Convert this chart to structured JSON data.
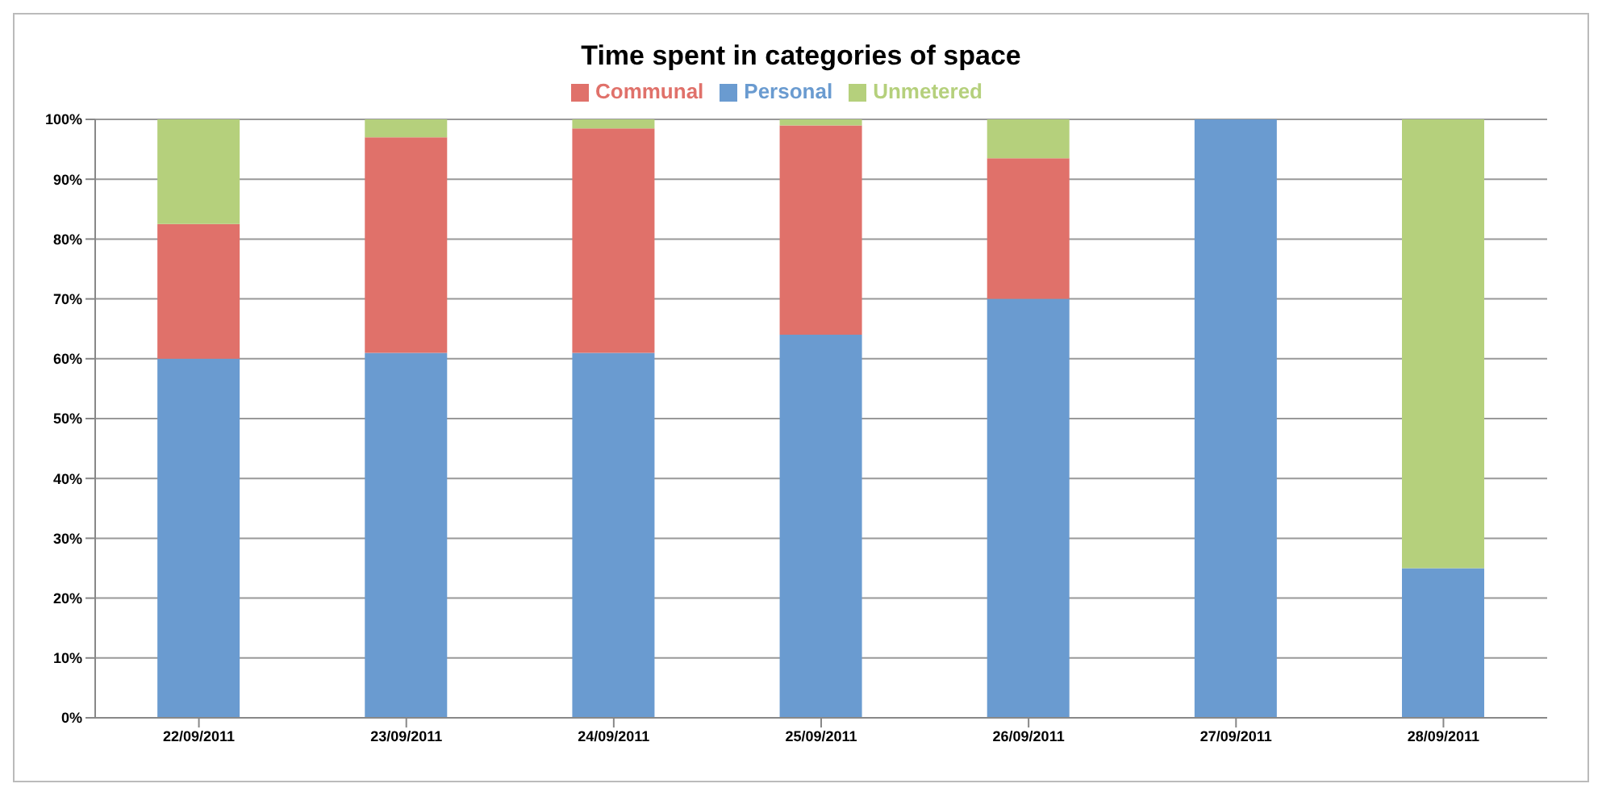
{
  "chart_data": {
    "type": "bar",
    "title": "Time spent in categories of space",
    "stacked": true,
    "grid": "y",
    "legend": "top",
    "categories": [
      "22/09/2011",
      "23/09/2011",
      "24/09/2011",
      "25/09/2011",
      "26/09/2011",
      "27/09/2011",
      "28/09/2011"
    ],
    "series": [
      {
        "name": "Personal",
        "color": "#6a9bd0",
        "values": [
          60,
          61,
          61,
          64,
          70,
          100,
          25
        ]
      },
      {
        "name": "Communal",
        "color": "#e0716a",
        "values": [
          22.5,
          36,
          37.5,
          35,
          23.5,
          0,
          0
        ]
      },
      {
        "name": "Unmetered",
        "color": "#b5d07c",
        "values": [
          17.5,
          3,
          1.5,
          1,
          6.5,
          0,
          75
        ]
      }
    ],
    "ylim": [
      0,
      100
    ],
    "yticks": [
      {
        "value": 0,
        "label": "0%"
      },
      {
        "value": 10,
        "label": "10%"
      },
      {
        "value": 20,
        "label": "20%"
      },
      {
        "value": 30,
        "label": "30%"
      },
      {
        "value": 40,
        "label": "40%"
      },
      {
        "value": 50,
        "label": "50%"
      },
      {
        "value": 60,
        "label": "60%"
      },
      {
        "value": 70,
        "label": "70%"
      },
      {
        "value": 80,
        "label": "80%"
      },
      {
        "value": 90,
        "label": "90%"
      },
      {
        "value": 100,
        "label": "100%"
      }
    ]
  }
}
